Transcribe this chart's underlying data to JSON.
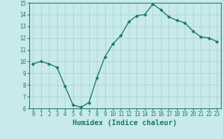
{
  "x": [
    0,
    1,
    2,
    3,
    4,
    5,
    6,
    7,
    8,
    9,
    10,
    11,
    12,
    13,
    14,
    15,
    16,
    17,
    18,
    19,
    20,
    21,
    22,
    23
  ],
  "y": [
    9.8,
    10.0,
    9.8,
    9.5,
    7.9,
    6.3,
    6.1,
    6.5,
    8.6,
    10.4,
    11.5,
    12.2,
    13.4,
    13.9,
    14.0,
    14.9,
    14.4,
    13.8,
    13.5,
    13.3,
    12.6,
    12.1,
    12.0,
    11.7
  ],
  "line_color": "#1a7a6a",
  "marker": "D",
  "marker_size": 2.2,
  "bg_color": "#c8eaea",
  "grid_color": "#aad4d4",
  "xlabel": "Humidex (Indice chaleur)",
  "xlim": [
    -0.5,
    23.5
  ],
  "ylim": [
    6,
    15
  ],
  "yticks": [
    6,
    7,
    8,
    9,
    10,
    11,
    12,
    13,
    14,
    15
  ],
  "xticks": [
    0,
    1,
    2,
    3,
    4,
    5,
    6,
    7,
    8,
    9,
    10,
    11,
    12,
    13,
    14,
    15,
    16,
    17,
    18,
    19,
    20,
    21,
    22,
    23
  ],
  "tick_label_fontsize": 5.5,
  "xlabel_fontsize": 7.5,
  "line_width": 1.0
}
